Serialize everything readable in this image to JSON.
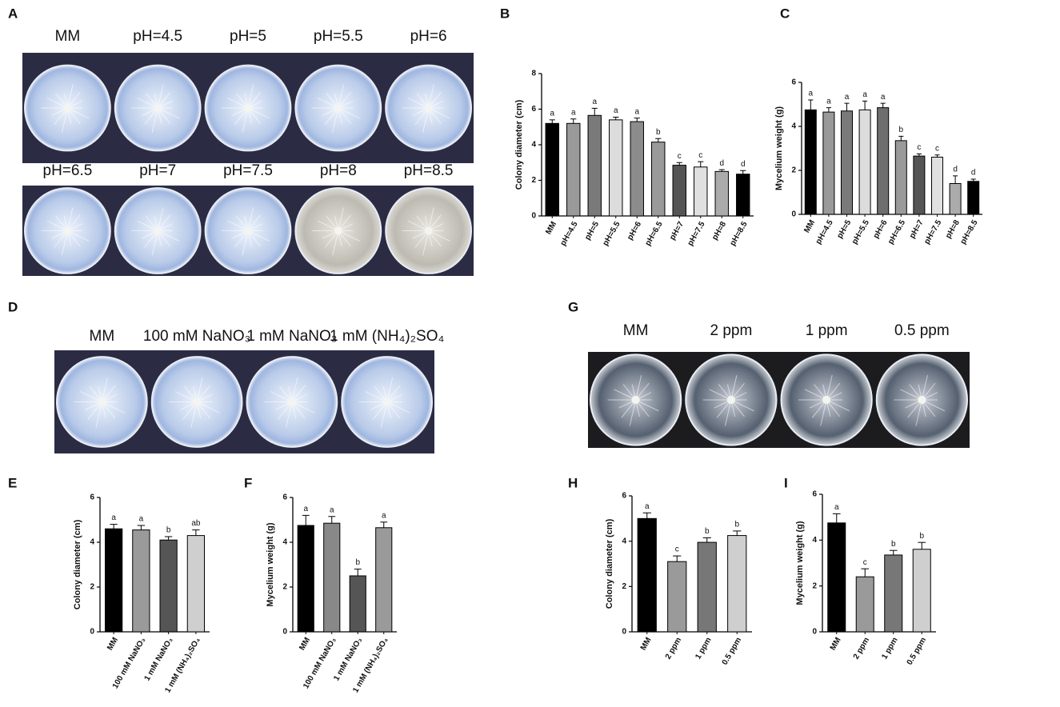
{
  "photo_panels": [
    {
      "panel": "A",
      "rows": [
        [
          "MM",
          "pH=4.5",
          "pH=5",
          "pH=5.5",
          "pH=6"
        ],
        [
          "pH=6.5",
          "pH=7",
          "pH=7.5",
          "pH=8",
          "pH=8.5"
        ]
      ]
    },
    {
      "panel": "D",
      "rows": [
        [
          "MM",
          "100 mM NaNO₃",
          "1 mM NaNO₃",
          "1 mM (NH₄)₂SO₄"
        ]
      ]
    },
    {
      "panel": "G",
      "rows": [
        [
          "MM",
          "2 ppm",
          "1 ppm",
          "0.5 ppm"
        ]
      ]
    }
  ],
  "chart_data": [
    {
      "type": "bar",
      "panel": "B",
      "y_label": "Colony diameter (cm)",
      "categories": [
        "MM",
        "pH=4.5",
        "pH=5",
        "pH=5.5",
        "pH=6",
        "pH=6.5",
        "pH=7",
        "pH=7.5",
        "pH=8",
        "pH=8.5"
      ],
      "values": [
        5.2,
        5.2,
        5.65,
        5.4,
        5.3,
        4.15,
        2.85,
        2.75,
        2.5,
        2.35
      ],
      "errors": [
        0.2,
        0.25,
        0.4,
        0.15,
        0.2,
        0.2,
        0.15,
        0.3,
        0.1,
        0.2
      ],
      "significance": [
        "a",
        "a",
        "a",
        "a",
        "a",
        "b",
        "c",
        "c",
        "d",
        "d"
      ],
      "colors": [
        "#000000",
        "#9a9a9a",
        "#7a7a7a",
        "#dcdcdc",
        "#8c8c8c",
        "#9a9a9a",
        "#555555",
        "#e0e0e0",
        "#ababab",
        "#000000"
      ],
      "ylim": [
        0,
        8
      ],
      "yticks": [
        0,
        2,
        4,
        6,
        8
      ]
    },
    {
      "type": "bar",
      "panel": "C",
      "y_label": "Mycelium weight (g)",
      "categories": [
        "MM",
        "pH=4.5",
        "pH=5",
        "pH=5.5",
        "pH=6",
        "pH=6.5",
        "pH=7",
        "pH=7.5",
        "pH=8",
        "pH=8.5"
      ],
      "values": [
        4.75,
        4.65,
        4.7,
        4.75,
        4.85,
        3.35,
        2.65,
        2.6,
        1.4,
        1.5
      ],
      "errors": [
        0.45,
        0.2,
        0.35,
        0.4,
        0.2,
        0.2,
        0.1,
        0.1,
        0.35,
        0.1
      ],
      "significance": [
        "a",
        "a",
        "a",
        "a",
        "a",
        "b",
        "c",
        "c",
        "d",
        "d"
      ],
      "colors": [
        "#000000",
        "#9a9a9a",
        "#7a7a7a",
        "#dcdcdc",
        "#6e6e6e",
        "#9a9a9a",
        "#555555",
        "#e0e0e0",
        "#ababab",
        "#000000"
      ],
      "ylim": [
        0,
        6
      ],
      "yticks": [
        0,
        2,
        4,
        6
      ]
    },
    {
      "type": "bar",
      "panel": "E",
      "y_label": "Colony diameter (cm)",
      "categories": [
        "MM",
        "100 mM NaNO₃",
        "1 mM NaNO₃",
        "1 mM (NH₄)₂SO₄"
      ],
      "values": [
        4.6,
        4.55,
        4.1,
        4.3
      ],
      "errors": [
        0.2,
        0.2,
        0.15,
        0.25
      ],
      "significance": [
        "a",
        "a",
        "b",
        "ab"
      ],
      "colors": [
        "#000000",
        "#9a9a9a",
        "#555555",
        "#cfcfcf"
      ],
      "ylim": [
        0,
        6
      ],
      "yticks": [
        0,
        2,
        4,
        6
      ]
    },
    {
      "type": "bar",
      "panel": "F",
      "y_label": "Mycelium weight (g)",
      "categories": [
        "MM",
        "100 mM NaNO₃",
        "1 mM NaNO₃",
        "1 mM (NH₄)₂SO₄"
      ],
      "values": [
        4.75,
        4.85,
        2.5,
        4.65
      ],
      "errors": [
        0.45,
        0.3,
        0.3,
        0.25
      ],
      "significance": [
        "a",
        "a",
        "b",
        "a"
      ],
      "colors": [
        "#000000",
        "#888888",
        "#555555",
        "#9a9a9a"
      ],
      "ylim": [
        0,
        6
      ],
      "yticks": [
        0,
        2,
        4,
        6
      ]
    },
    {
      "type": "bar",
      "panel": "H",
      "y_label": "Colony diameter (cm)",
      "categories": [
        "MM",
        "2 ppm",
        "1 ppm",
        "0.5 ppm"
      ],
      "values": [
        5.0,
        3.1,
        3.95,
        4.25
      ],
      "errors": [
        0.25,
        0.25,
        0.2,
        0.2
      ],
      "significance": [
        "a",
        "c",
        "b",
        "b"
      ],
      "colors": [
        "#000000",
        "#9a9a9a",
        "#777777",
        "#cfcfcf"
      ],
      "ylim": [
        0,
        6
      ],
      "yticks": [
        0,
        2,
        4,
        6
      ]
    },
    {
      "type": "bar",
      "panel": "I",
      "y_label": "Mycelium weight (g)",
      "categories": [
        "MM",
        "2 ppm",
        "1 ppm",
        "0.5 ppm"
      ],
      "values": [
        4.75,
        2.4,
        3.35,
        3.6
      ],
      "errors": [
        0.4,
        0.35,
        0.2,
        0.3
      ],
      "significance": [
        "a",
        "c",
        "b",
        "b"
      ],
      "colors": [
        "#000000",
        "#9a9a9a",
        "#777777",
        "#cfcfcf"
      ],
      "ylim": [
        0,
        6
      ],
      "yticks": [
        0,
        2,
        4,
        6
      ]
    }
  ]
}
